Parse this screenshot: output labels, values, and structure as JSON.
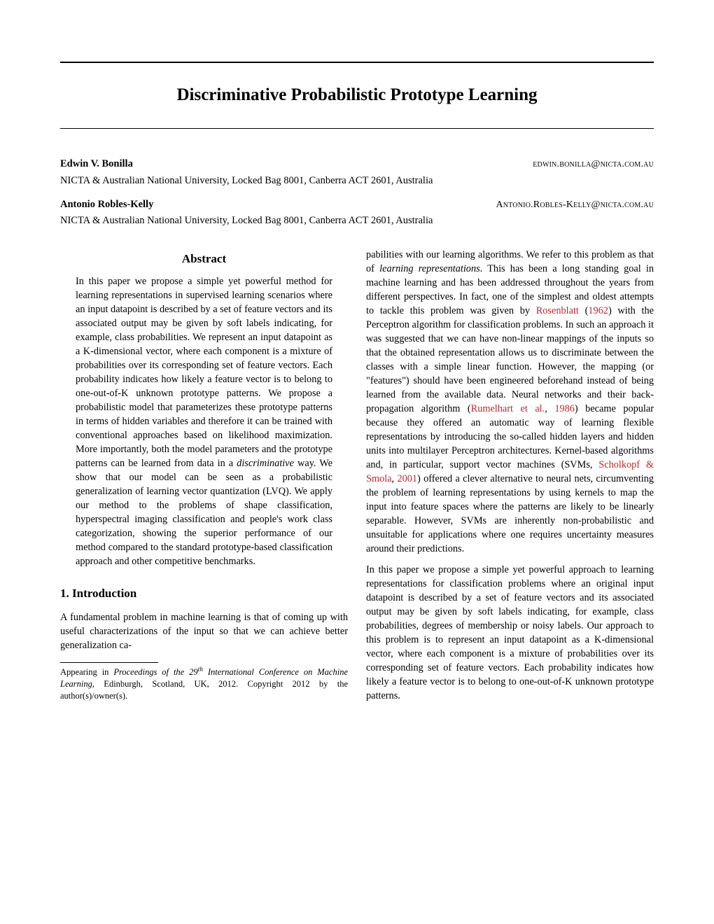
{
  "title": "Discriminative Probabilistic Prototype Learning",
  "authors": [
    {
      "name": "Edwin V. Bonilla",
      "email": "edwin.bonilla@nicta.com.au",
      "affiliation": "NICTA & Australian National University, Locked Bag 8001, Canberra ACT 2601, Australia"
    },
    {
      "name": "Antonio Robles-Kelly",
      "email": "Antonio.Robles-Kelly@nicta.com.au",
      "affiliation": "NICTA & Australian National University, Locked Bag 8001, Canberra ACT 2601, Australia"
    }
  ],
  "abstract_heading": "Abstract",
  "abstract_body": "In this paper we propose a simple yet powerful method for learning representations in supervised learning scenarios where an input datapoint is described by a set of feature vectors and its associated output may be given by soft labels indicating, for example, class probabilities. We represent an input datapoint as a K-dimensional vector, where each component is a mixture of probabilities over its corresponding set of feature vectors. Each probability indicates how likely a feature vector is to belong to one-out-of-K unknown prototype patterns. We propose a probabilistic model that parameterizes these prototype patterns in terms of hidden variables and therefore it can be trained with conventional approaches based on likelihood maximization. More importantly, both the model parameters and the prototype patterns can be learned from data in a discriminative way. We show that our model can be seen as a probabilistic generalization of learning vector quantization (LVQ). We apply our method to the problems of shape classification, hyperspectral imaging classification and people's work class categorization, showing the superior performance of our method compared to the standard prototype-based classification approach and other competitive benchmarks.",
  "section1_heading": "1. Introduction",
  "intro_para1": "A fundamental problem in machine learning is that of coming up with useful characterizations of the input so that we can achieve better generalization ca-",
  "footnote_prefix": "Appearing in ",
  "footnote_italic1": "Proceedings of the 29",
  "footnote_sup": "th",
  "footnote_italic2": " International Conference on Machine Learning",
  "footnote_suffix": ", Edinburgh, Scotland, UK, 2012. Copyright 2012 by the author(s)/owner(s).",
  "col2_text1": "pabilities with our learning algorithms. We refer to this problem as that of ",
  "col2_italic1": "learning representations",
  "col2_text2": ". This has been a long standing goal in machine learning and has been addressed throughout the years from different perspectives. In fact, one of the simplest and oldest attempts to tackle this problem was given by ",
  "col2_cite1a": "Rosenblatt",
  "col2_text3": " (",
  "col2_cite1b": "1962",
  "col2_text4": ") with the Perceptron algorithm for classification problems. In such an approach it was suggested that we can have non-linear mappings of the inputs so that the obtained representation allows us to discriminate between the classes with a simple linear function. However, the mapping (or \"features\") should have been engineered beforehand instead of being learned from the available data. Neural networks and their back-propagation algorithm (",
  "col2_cite2a": "Rumelhart et al.",
  "col2_text5": ", ",
  "col2_cite2b": "1986",
  "col2_text6": ") became popular because they offered an automatic way of learning flexible representations by introducing the so-called hidden layers and hidden units into multilayer Perceptron architectures. Kernel-based algorithms and, in particular, support vector machines (SVMs, ",
  "col2_cite3a": "Scholkopf & Smola",
  "col2_text7": ", ",
  "col2_cite3b": "2001",
  "col2_text8": ") offered a clever alternative to neural nets, circumventing the problem of learning representations by using kernels to map the input into feature spaces where the patterns are likely to be linearly separable. However, SVMs are inherently non-probabilistic and unsuitable for applications where one requires uncertainty measures around their predictions.",
  "col2_para2": "In this paper we propose a simple yet powerful approach to learning representations for classification problems where an original input datapoint is described by a set of feature vectors and its associated output may be given by soft labels indicating, for example, class probabilities, degrees of membership or noisy labels. Our approach to this problem is to represent an input datapoint as a K-dimensional vector, where each component is a mixture of probabilities over its corresponding set of feature vectors. Each probability indicates how likely a feature vector is to belong to one-out-of-K unknown prototype patterns.",
  "colors": {
    "text": "#000000",
    "background": "#ffffff",
    "citation": "#c0282d"
  }
}
